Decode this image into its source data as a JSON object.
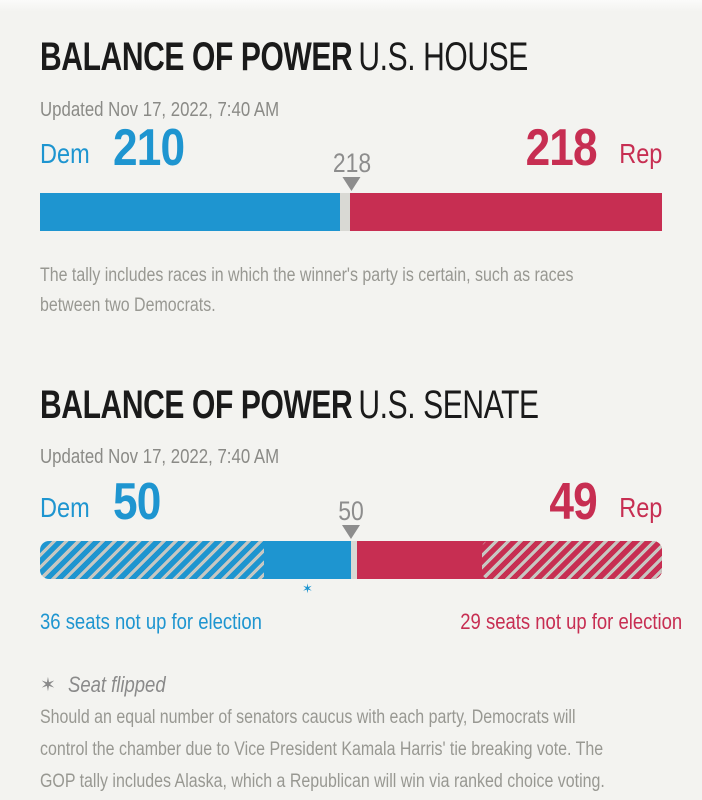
{
  "colors": {
    "background": "#f3f3f0",
    "dem": "#1e95d0",
    "rep": "#c72e52",
    "undecided": "#d9d9d4",
    "hatch_gray": "#c7c7c2",
    "title_text": "#1a1a1a",
    "muted_text": "#989892",
    "marker_gray": "#8d8d8d"
  },
  "house": {
    "title_bold": "BALANCE OF POWER",
    "title_light": "U.S. HOUSE",
    "updated": "Updated Nov 17, 2022, 7:40 AM",
    "dem_label": "Dem",
    "dem_count": "210",
    "rep_count": "218",
    "rep_label": "Rep",
    "majority_label": "218",
    "note": "The tally includes races in which the winner's party is certain, such as races\nbetween two Democrats."
  },
  "senate": {
    "title_bold": "BALANCE OF POWER",
    "title_light": "U.S. SENATE",
    "updated": "Updated Nov 17, 2022, 7:40 AM",
    "dem_label": "Dem",
    "dem_count": "50",
    "rep_count": "49",
    "rep_label": "Rep",
    "majority_label": "50",
    "dem_not_up_label": "36 seats not up for election",
    "rep_not_up_label": "29 seats not up for election",
    "flip_star": "✶",
    "legend_star": "✶",
    "legend_label": "Seat flipped",
    "footnote": "Should an equal number of senators caucus with each party, Democrats will\ncontrol the chamber due to Vice President Kamala Harris' tie breaking vote. The\nGOP tally includes Alaska, which a Republican will win via ranked choice voting."
  },
  "chart_data": [
    {
      "type": "bar",
      "title": "Balance of Power — U.S. House",
      "updated": "Nov 17, 2022, 7:40 AM",
      "total_seats": 435,
      "majority_seats": 218,
      "dem_seats": 210,
      "rep_seats": 218,
      "undecided_seats": 7,
      "series": [
        {
          "name": "Dem",
          "seats": 210,
          "style": "dem",
          "color": "#1e95d0"
        },
        {
          "name": "Undecided",
          "seats": 7,
          "style": "gap",
          "color": "#d9d9d4"
        },
        {
          "name": "Rep",
          "seats": 218,
          "style": "rep",
          "color": "#c72e52"
        }
      ],
      "note": "The tally includes races in which the winner's party is certain, such as races between two Democrats."
    },
    {
      "type": "bar",
      "title": "Balance of Power — U.S. Senate",
      "updated": "Nov 17, 2022, 7:40 AM",
      "total_seats": 100,
      "majority_seats": 50,
      "dem_seats": 50,
      "rep_seats": 49,
      "undecided_seats": 1,
      "series": [
        {
          "name": "Dem seats not up for election",
          "seats": 36,
          "style": "dem-hatch",
          "color": "#1e95d0",
          "hatched": true
        },
        {
          "name": "Dem seats won",
          "seats": 14,
          "style": "dem",
          "color": "#1e95d0",
          "flipped": true
        },
        {
          "name": "Undecided",
          "seats": 1,
          "style": "gap",
          "color": "#d9d9d4"
        },
        {
          "name": "Rep seats won",
          "seats": 20,
          "style": "rep",
          "color": "#c72e52"
        },
        {
          "name": "Rep seats not up for election",
          "seats": 29,
          "style": "rep-hatch",
          "color": "#c72e52",
          "hatched": true
        }
      ],
      "legend": "✶ Seat flipped",
      "footnote": "Should an equal number of senators caucus with each party, Democrats will control the chamber due to Vice President Kamala Harris' tie breaking vote. The GOP tally includes Alaska, which a Republican will win via ranked choice voting."
    }
  ]
}
